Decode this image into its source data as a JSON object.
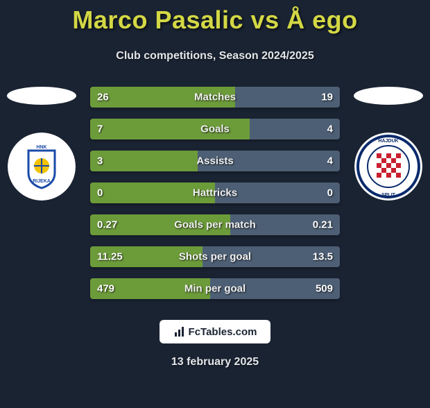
{
  "title": "Marco Pasalic vs Å ego",
  "subtitle": "Club competitions, Season 2024/2025",
  "date": "13 february 2025",
  "footer_brand": "FcTables.com",
  "colors": {
    "background": "#1a2332",
    "title": "#d3d845",
    "bar_left": "#6c9b3a",
    "bar_right": "#4d5f75",
    "bar_bg": "#2a3444",
    "text": "#e4e6ea"
  },
  "left_team": {
    "name": "HNK Rijeka",
    "badge_bg": "#ffffff",
    "badge_accent": "#1a4aa8",
    "badge_inner": "#f2c300"
  },
  "right_team": {
    "name": "Hajduk Split",
    "badge_bg": "#ffffff",
    "badge_accent": "#c8202f",
    "badge_ring": "#0a2a6b"
  },
  "rows": [
    {
      "label": "Matches",
      "left": "26",
      "right": "19",
      "left_pct": 58,
      "right_pct": 42
    },
    {
      "label": "Goals",
      "left": "7",
      "right": "4",
      "left_pct": 64,
      "right_pct": 36
    },
    {
      "label": "Assists",
      "left": "3",
      "right": "4",
      "left_pct": 43,
      "right_pct": 57
    },
    {
      "label": "Hattricks",
      "left": "0",
      "right": "0",
      "left_pct": 50,
      "right_pct": 50
    },
    {
      "label": "Goals per match",
      "left": "0.27",
      "right": "0.21",
      "left_pct": 56,
      "right_pct": 44
    },
    {
      "label": "Shots per goal",
      "left": "11.25",
      "right": "13.5",
      "left_pct": 45,
      "right_pct": 55
    },
    {
      "label": "Min per goal",
      "left": "479",
      "right": "509",
      "left_pct": 48,
      "right_pct": 52
    }
  ]
}
